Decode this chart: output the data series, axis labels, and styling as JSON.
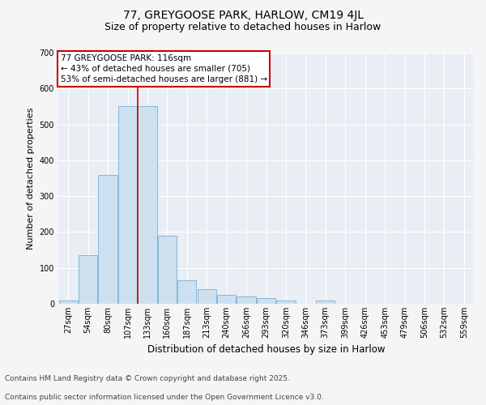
{
  "title_line1": "77, GREYGOOSE PARK, HARLOW, CM19 4JL",
  "title_line2": "Size of property relative to detached houses in Harlow",
  "xlabel": "Distribution of detached houses by size in Harlow",
  "ylabel": "Number of detached properties",
  "categories": [
    "27sqm",
    "54sqm",
    "80sqm",
    "107sqm",
    "133sqm",
    "160sqm",
    "187sqm",
    "213sqm",
    "240sqm",
    "266sqm",
    "293sqm",
    "320sqm",
    "346sqm",
    "373sqm",
    "399sqm",
    "426sqm",
    "453sqm",
    "479sqm",
    "506sqm",
    "532sqm",
    "559sqm"
  ],
  "values": [
    10,
    135,
    360,
    550,
    550,
    190,
    65,
    40,
    25,
    20,
    15,
    10,
    0,
    8,
    0,
    0,
    0,
    0,
    0,
    0,
    0
  ],
  "bar_color": "#cce0f0",
  "bar_edge_color": "#7ab0d4",
  "vline_x": 3.5,
  "vline_color": "#cc0000",
  "annotation_title": "77 GREYGOOSE PARK: 116sqm",
  "annotation_line1": "← 43% of detached houses are smaller (705)",
  "annotation_line2": "53% of semi-detached houses are larger (881) →",
  "annotation_box_facecolor": "#ffffff",
  "annotation_box_edgecolor": "#cc0000",
  "ylim": [
    0,
    700
  ],
  "yticks": [
    0,
    100,
    200,
    300,
    400,
    500,
    600,
    700
  ],
  "fig_facecolor": "#f5f5f5",
  "plot_facecolor": "#e8eef4",
  "grid_color": "#ffffff",
  "footnote_line1": "Contains HM Land Registry data © Crown copyright and database right 2025.",
  "footnote_line2": "Contains public sector information licensed under the Open Government Licence v3.0.",
  "title_fontsize": 10,
  "subtitle_fontsize": 9,
  "ylabel_fontsize": 8,
  "xlabel_fontsize": 8.5,
  "tick_fontsize": 7,
  "annotation_fontsize": 7.5,
  "footnote_fontsize": 6.5
}
